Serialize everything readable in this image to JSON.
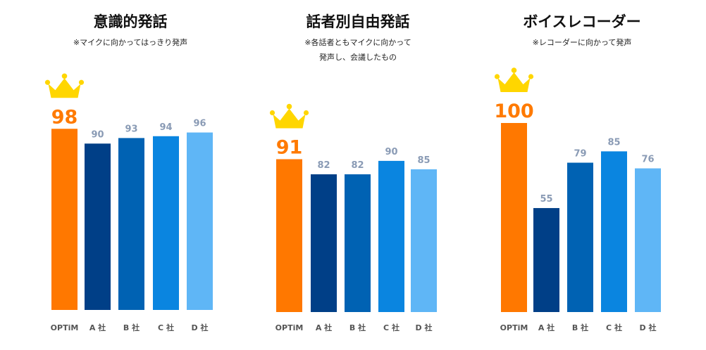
{
  "colors": {
    "OPTiM": "#ff7800",
    "A": "#003f87",
    "B": "#0062b3",
    "C": "#0a85e0",
    "D": "#5fb6f6",
    "crown": "#ffd600",
    "winner_label": "#ff7a00",
    "value_label": "#8a9bb5"
  },
  "icons": {
    "winner": "crown-icon"
  },
  "chart_data": [
    {
      "type": "bar",
      "title": "意識的発話",
      "notes": [
        "※マイクに向かってはっきり発声"
      ],
      "categories": [
        "OPTiM",
        "A 社",
        "B 社",
        "C 社",
        "D 社"
      ],
      "values": [
        98,
        90,
        93,
        94,
        96
      ],
      "winner_index": 0,
      "ylim": [
        0,
        100
      ],
      "grid": false,
      "legend": "none"
    },
    {
      "type": "bar",
      "title": "話者別自由発話",
      "notes": [
        "※各話者ともマイクに向かって",
        "発声し、会議したもの"
      ],
      "categories": [
        "OPTiM",
        "A 社",
        "B 社",
        "C 社",
        "D 社"
      ],
      "values": [
        91,
        82,
        82,
        90,
        85
      ],
      "winner_index": 0,
      "ylim": [
        0,
        100
      ],
      "grid": false,
      "legend": "none"
    },
    {
      "type": "bar",
      "title": "ボイスレコーダー",
      "notes": [
        "※レコーダーに向かって発声"
      ],
      "categories": [
        "OPTiM",
        "A 社",
        "B 社",
        "C 社",
        "D 社"
      ],
      "values": [
        100,
        55,
        79,
        85,
        76
      ],
      "winner_index": 0,
      "ylim": [
        0,
        100
      ],
      "grid": false,
      "legend": "none"
    }
  ]
}
